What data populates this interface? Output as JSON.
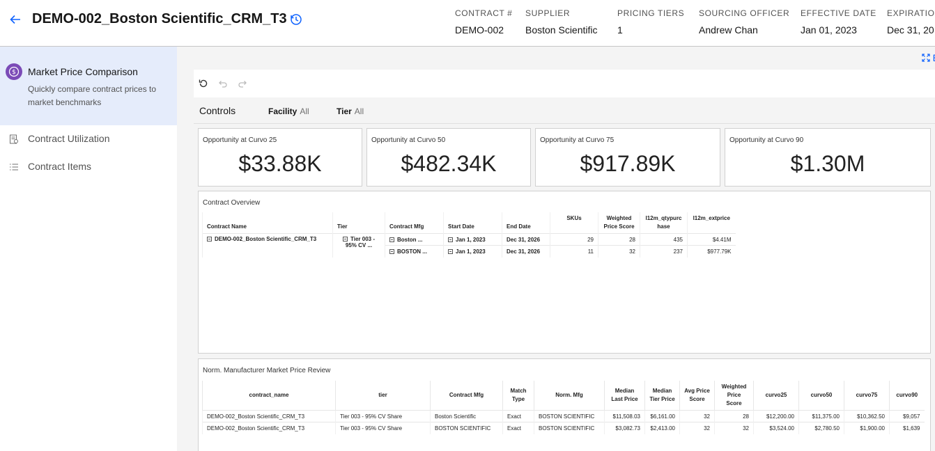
{
  "header": {
    "title": "DEMO-002_Boston Scientific_CRM_T3",
    "meta": [
      {
        "label": "CONTRACT #",
        "value": "DEMO-002"
      },
      {
        "label": "SUPPLIER",
        "value": "Boston Scientific"
      },
      {
        "label": "PRICING TIERS",
        "value": "1"
      },
      {
        "label": "SOURCING OFFICER",
        "value": "Andrew Chan"
      },
      {
        "label": "EFFECTIVE DATE",
        "value": "Jan 01, 2023"
      },
      {
        "label": "EXPIRATION",
        "value": "Dec 31, 20"
      }
    ]
  },
  "sidebar": {
    "active": {
      "title": "Market Price Comparison",
      "description": "Quickly compare contract prices to market benchmarks"
    },
    "items": [
      {
        "label": "Contract Utilization",
        "icon": "report-icon"
      },
      {
        "label": "Contract Items",
        "icon": "list-icon"
      }
    ]
  },
  "main": {
    "expand_label": "E",
    "controls": {
      "title": "Controls",
      "filters": [
        {
          "label": "Facility",
          "value": "All"
        },
        {
          "label": "Tier",
          "value": "All"
        }
      ]
    },
    "kpis": [
      {
        "label": "Opportunity at Curvo 25",
        "value": "$33.88K"
      },
      {
        "label": "Opportunity at Curvo 50",
        "value": "$482.34K"
      },
      {
        "label": "Opportunity at Curvo 75",
        "value": "$917.89K"
      },
      {
        "label": "Opportunity at Curvo 90",
        "value": "$1.30M"
      }
    ],
    "overview": {
      "title": "Contract Overview",
      "columns": [
        "Contract Name",
        "Tier",
        "Contract Mfg",
        "Start Date",
        "End Date",
        "SKUs",
        "Weighted Price Score",
        "l12m_qtypurchase",
        "l12m_extprice"
      ],
      "contract_name": "DEMO-002_Boston Scientific_CRM_T3",
      "tier": "Tier 003 - 95% CV ...",
      "rows": [
        {
          "mfg": "Boston ...",
          "start": "Jan 1, 2023",
          "end": "Dec 31, 2026",
          "skus": "29",
          "wps": "28",
          "qty": "435",
          "ext": "$4.41M"
        },
        {
          "mfg": "BOSTON ...",
          "start": "Jan 1, 2023",
          "end": "Dec 31, 2026",
          "skus": "11",
          "wps": "32",
          "qty": "237",
          "ext": "$977.79K"
        }
      ]
    },
    "review": {
      "title": "Norm. Manufacturer Market Price Review",
      "columns": [
        "contract_name",
        "tier",
        "Contract Mfg",
        "Match Type",
        "Norm. Mfg",
        "Median Last Price",
        "Median Tier Price",
        "Avg Price Score",
        "Weighted Price Score",
        "curvo25",
        "curvo50",
        "curvo75",
        "curvo90"
      ],
      "rows": [
        [
          "DEMO-002_Boston Scientific_CRM_T3",
          "Tier 003 - 95% CV Share",
          "Boston Scientific",
          "Exact",
          "BOSTON SCIENTIFIC",
          "$11,508.03",
          "$6,161.00",
          "32",
          "28",
          "$12,200.00",
          "$11,375.00",
          "$10,362.50",
          "$9,057"
        ],
        [
          "DEMO-002_Boston Scientific_CRM_T3",
          "Tier 003 - 95% CV Share",
          "BOSTON SCIENTIFIC",
          "Exact",
          "BOSTON SCIENTIFIC",
          "$3,082.73",
          "$2,413.00",
          "32",
          "32",
          "$3,524.00",
          "$2,780.50",
          "$1,900.00",
          "$1,639"
        ]
      ]
    }
  },
  "colors": {
    "accent": "#0f62fe",
    "badge": "#7b4bb7",
    "nav_active_bg": "#e5ecfb"
  }
}
